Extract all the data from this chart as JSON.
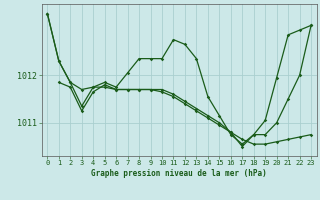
{
  "title": "Graphe pression niveau de la mer (hPa)",
  "bg_color": "#cce8e8",
  "grid_color": "#aacfcf",
  "line_color": "#1a5c1a",
  "xlim": [
    -0.5,
    23.5
  ],
  "ylim": [
    1010.3,
    1013.5
  ],
  "yticks": [
    1011,
    1012
  ],
  "xticks": [
    0,
    1,
    2,
    3,
    4,
    5,
    6,
    7,
    8,
    9,
    10,
    11,
    12,
    13,
    14,
    15,
    16,
    17,
    18,
    19,
    20,
    21,
    22,
    23
  ],
  "series1_x": [
    0,
    1,
    2,
    3,
    4,
    5,
    6,
    7,
    8,
    9,
    10,
    11,
    12,
    13,
    14,
    15,
    16,
    17,
    18,
    19,
    20,
    21,
    22,
    23
  ],
  "series1_y": [
    1013.3,
    1012.3,
    1011.85,
    1011.35,
    1011.75,
    1011.85,
    1011.75,
    1012.05,
    1012.35,
    1012.35,
    1012.35,
    1012.75,
    1012.65,
    1012.35,
    1011.55,
    1011.15,
    1010.75,
    1010.55,
    1010.75,
    1011.05,
    1011.95,
    1012.85,
    1012.95,
    1013.05
  ],
  "series2_x": [
    1,
    2,
    3,
    4,
    5,
    6,
    7,
    8,
    9,
    10,
    11,
    12,
    13,
    14,
    15,
    16,
    17,
    18,
    19,
    20,
    21,
    22,
    23
  ],
  "series2_y": [
    1011.85,
    1011.75,
    1011.25,
    1011.65,
    1011.8,
    1011.7,
    1011.7,
    1011.7,
    1011.7,
    1011.7,
    1011.6,
    1011.45,
    1011.3,
    1011.15,
    1011.0,
    1010.8,
    1010.5,
    1010.75,
    1010.75,
    1011.0,
    1011.5,
    1012.0,
    1013.05
  ],
  "series3_x": [
    0,
    1,
    2,
    3,
    4,
    5,
    6,
    7,
    8,
    9,
    10,
    11,
    12,
    13,
    14,
    15,
    16,
    17,
    18,
    19,
    20,
    21,
    22,
    23
  ],
  "series3_y": [
    1013.3,
    1012.3,
    1011.85,
    1011.7,
    1011.75,
    1011.75,
    1011.7,
    1011.7,
    1011.7,
    1011.7,
    1011.65,
    1011.55,
    1011.4,
    1011.25,
    1011.1,
    1010.95,
    1010.8,
    1010.65,
    1010.55,
    1010.55,
    1010.6,
    1010.65,
    1010.7,
    1010.75
  ],
  "marker": "D",
  "marker_size": 1.8,
  "line_width": 0.9,
  "tick_fontsize": 5,
  "xlabel_fontsize": 5.5
}
